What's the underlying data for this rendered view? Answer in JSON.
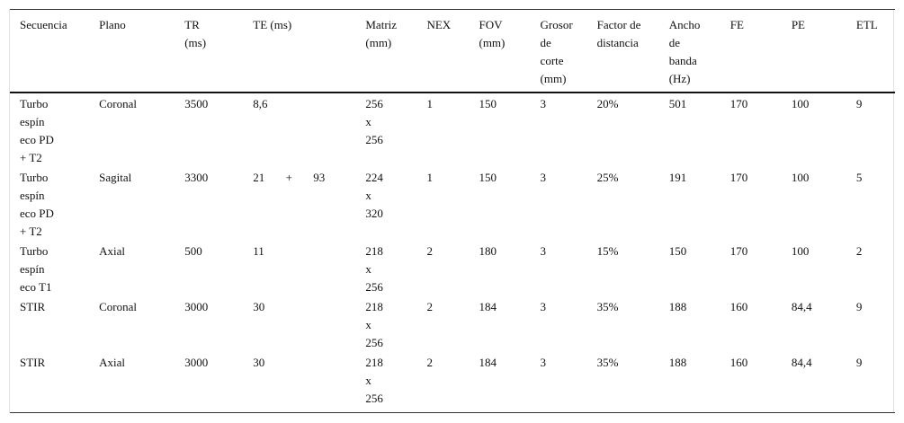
{
  "table": {
    "header": [
      "Secuencia",
      "Plano",
      "TR (ms)",
      "TE (ms)",
      "Matriz (mm)",
      "NEX",
      "FOV (mm)",
      "Grosor de corte (mm)",
      "Factor de distancia",
      "Ancho de banda (Hz)",
      "FE",
      "PE",
      "ETL"
    ],
    "rows": [
      [
        "Turbo espín eco PD + T2",
        "Coronal",
        "3500",
        "8,6",
        "256 x 256",
        "1",
        "150",
        "3",
        "20%",
        "501",
        "170",
        "100",
        "9"
      ],
      [
        "Turbo espín eco PD + T2",
        "Sagital",
        "3300",
        "21 + 93",
        "224 x 320",
        "1",
        "150",
        "3",
        "25%",
        "191",
        "170",
        "100",
        "5"
      ],
      [
        "Turbo espín eco T1",
        "Axial",
        "500",
        "11",
        "218 x 256",
        "2",
        "180",
        "3",
        "15%",
        "150",
        "170",
        "100",
        "2"
      ],
      [
        "STIR",
        "Coronal",
        "3000",
        "30",
        "218 x 256",
        "2",
        "184",
        "3",
        "35%",
        "188",
        "160",
        "84,4",
        "9"
      ],
      [
        "STIR",
        "Axial",
        "3000",
        "30",
        "218 x 256",
        "2",
        "184",
        "3",
        "35%",
        "188",
        "160",
        "84,4",
        "9"
      ]
    ]
  }
}
